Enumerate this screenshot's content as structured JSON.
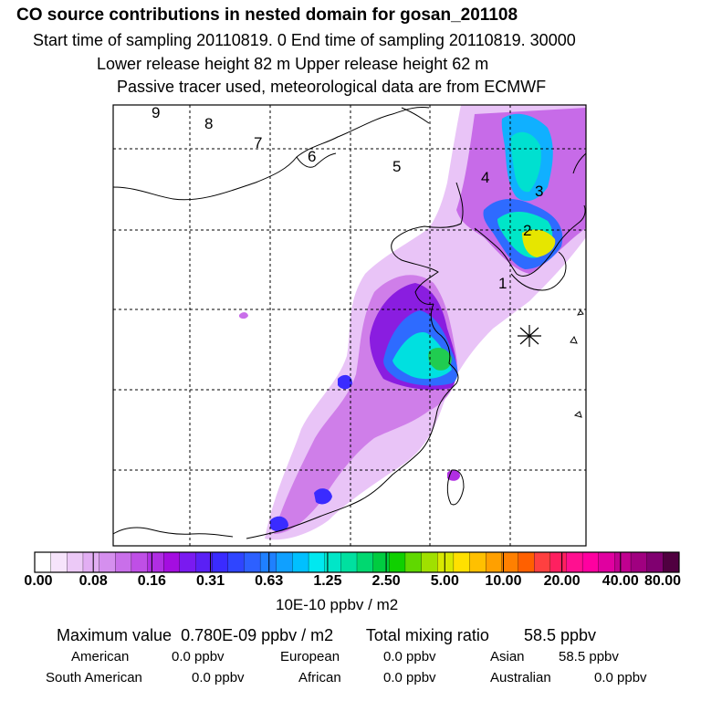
{
  "header": {
    "title": "CO  source contributions in nested domain for gosan_201108",
    "sampling_line": "Start time of sampling 20110819.    0     End time of sampling 20110819. 30000",
    "release_line": "Lower release height   82 m          Upper release height   62 m",
    "tracer_line": "Passive tracer used, meteorological data are from ECMWF"
  },
  "map": {
    "region_labels": [
      "1",
      "2",
      "3",
      "4",
      "5",
      "6",
      "7",
      "8",
      "9"
    ],
    "receptor_marker": "asterisk-star-icon"
  },
  "colorbar": {
    "tick_labels": [
      "0.00",
      "0.08",
      "0.16",
      "0.31",
      "0.63",
      "1.25",
      "2.50",
      "5.00",
      "10.00",
      "20.00",
      "40.00",
      "80.00"
    ],
    "colors": [
      "#ffffff",
      "#f6e4fb",
      "#ecc9f7",
      "#e2aef3",
      "#d58fee",
      "#c96fea",
      "#bf4fe6",
      "#b02ee3",
      "#a40de0",
      "#7a1af0",
      "#5a20f5",
      "#3a2bff",
      "#2f45ff",
      "#2d60ff",
      "#1f80ff",
      "#10a0ff",
      "#00c0ff",
      "#00e8f0",
      "#00e6c8",
      "#00e0a0",
      "#00d870",
      "#00cc40",
      "#10d000",
      "#60d800",
      "#a0e000",
      "#d8e800",
      "#ffe000",
      "#ffc000",
      "#ffa000",
      "#ff8000",
      "#ff6000",
      "#ff4040",
      "#ff2060",
      "#ff1090",
      "#ff00a0",
      "#e000a0",
      "#c00090",
      "#a00080",
      "#800070",
      "#500040"
    ],
    "unit": "10E-10 ppbv / m2"
  },
  "summary": {
    "max_label": "Maximum value",
    "max_value": "0.780E-09 ppbv / m2",
    "total_label": "Total mixing ratio",
    "total_value": "58.5 ppbv",
    "regions": [
      {
        "name": "American",
        "value": "0.0 ppbv"
      },
      {
        "name": "European",
        "value": "0.0 ppbv"
      },
      {
        "name": "Asian",
        "value": "58.5 ppbv"
      },
      {
        "name": "South American",
        "value": "0.0 ppbv"
      },
      {
        "name": "African",
        "value": "0.0 ppbv"
      },
      {
        "name": "Australian",
        "value": "0.0 ppbv"
      }
    ]
  }
}
